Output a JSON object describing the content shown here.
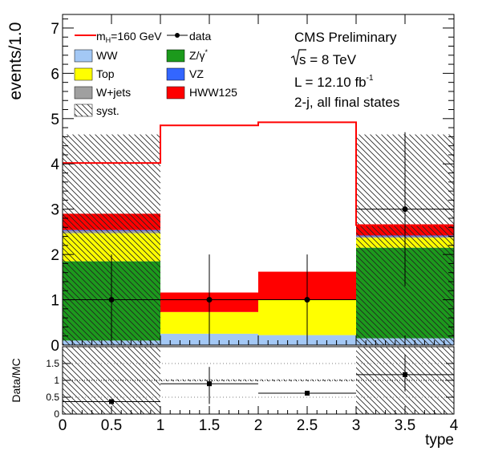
{
  "chart_data": {
    "type": "bar",
    "stacked": true,
    "x_edges": [
      0,
      1,
      2,
      3,
      4
    ],
    "bin_centers": [
      0.5,
      1.5,
      2.5,
      3.5
    ],
    "xlabel": "type",
    "ylabel": "events/1.0",
    "xlim": [
      0,
      4
    ],
    "ylim": [
      0,
      7.3
    ],
    "x_ticks": [
      "0",
      "0.5",
      "1",
      "1.5",
      "2",
      "2.5",
      "3",
      "3.5",
      "4"
    ],
    "y_ticks": [
      "0",
      "1",
      "2",
      "3",
      "4",
      "5",
      "6",
      "7"
    ],
    "legend_placement": "top-left",
    "series": [
      {
        "name": "WW",
        "color": "#a3c8f5",
        "values": [
          0.1,
          0.25,
          0.22,
          0.15
        ]
      },
      {
        "name": "Z/γ*",
        "color": "#1c9a1c",
        "values": [
          1.75,
          0.0,
          0.0,
          2.0
        ]
      },
      {
        "name": "Top",
        "color": "#ffff00",
        "values": [
          0.62,
          0.48,
          0.78,
          0.22
        ]
      },
      {
        "name": "W+jets",
        "color": "#a0a0a0",
        "values": [
          0.05,
          0.0,
          0.0,
          0.03
        ]
      },
      {
        "name": "VZ",
        "color": "#3366ff",
        "values": [
          0.02,
          0.0,
          0.0,
          0.02
        ]
      },
      {
        "name": "HWW125",
        "color": "#ff0000",
        "values": [
          0.36,
          0.43,
          0.62,
          0.23
        ]
      }
    ],
    "signal": {
      "name": "m_H=160 GeV",
      "color": "#ff0000",
      "values": [
        4.02,
        4.85,
        4.92,
        2.65
      ]
    },
    "syst_band": {
      "name": "syst.",
      "lo": [
        0,
        0,
        0,
        0
      ],
      "hi": [
        4.65,
        0,
        0,
        4.65
      ]
    },
    "data": {
      "name": "data",
      "x": [
        0.5,
        1.5,
        2.5,
        3.5
      ],
      "y": [
        1,
        1,
        1,
        3
      ],
      "err_lo": [
        1,
        1,
        1,
        1.7
      ],
      "err_hi": [
        1,
        1,
        1,
        1.7
      ]
    },
    "ratio": {
      "ylabel": "Data/MC",
      "ylim": [
        0,
        2
      ],
      "y_ticks": [
        "0",
        "0.5",
        "1",
        "1.5"
      ],
      "x": [
        0.5,
        1.5,
        2.5,
        3.5
      ],
      "y": [
        0.37,
        0.9,
        0.62,
        1.17
      ],
      "err_hi": [
        0.05,
        0.5,
        0.0,
        0.6
      ],
      "err_lo": [
        0.0,
        0.6,
        0.0,
        0.5
      ],
      "band_lo": [
        0.0,
        0.97,
        0.97,
        0.0
      ],
      "band_hi": [
        2.0,
        1.03,
        1.03,
        2.0
      ],
      "reference_line": 1.0
    }
  },
  "annotations": {
    "experiment": "CMS Preliminary",
    "energy_prefix": "s",
    "energy_suffix": " = 8 TeV",
    "lumi_prefix": "L = 12.10 fb",
    "lumi_exp": "-1",
    "selection": "2-j, all final states"
  },
  "legend": {
    "signal_m": "m",
    "signal_sub": "H",
    "signal_rest": "=160 GeV",
    "data": "data",
    "ww": "WW",
    "zg": "Z/γ",
    "zg_sup": "*",
    "top": "Top",
    "vz": "VZ",
    "wjets": "W+jets",
    "hww": "HWW125",
    "syst": "syst."
  }
}
